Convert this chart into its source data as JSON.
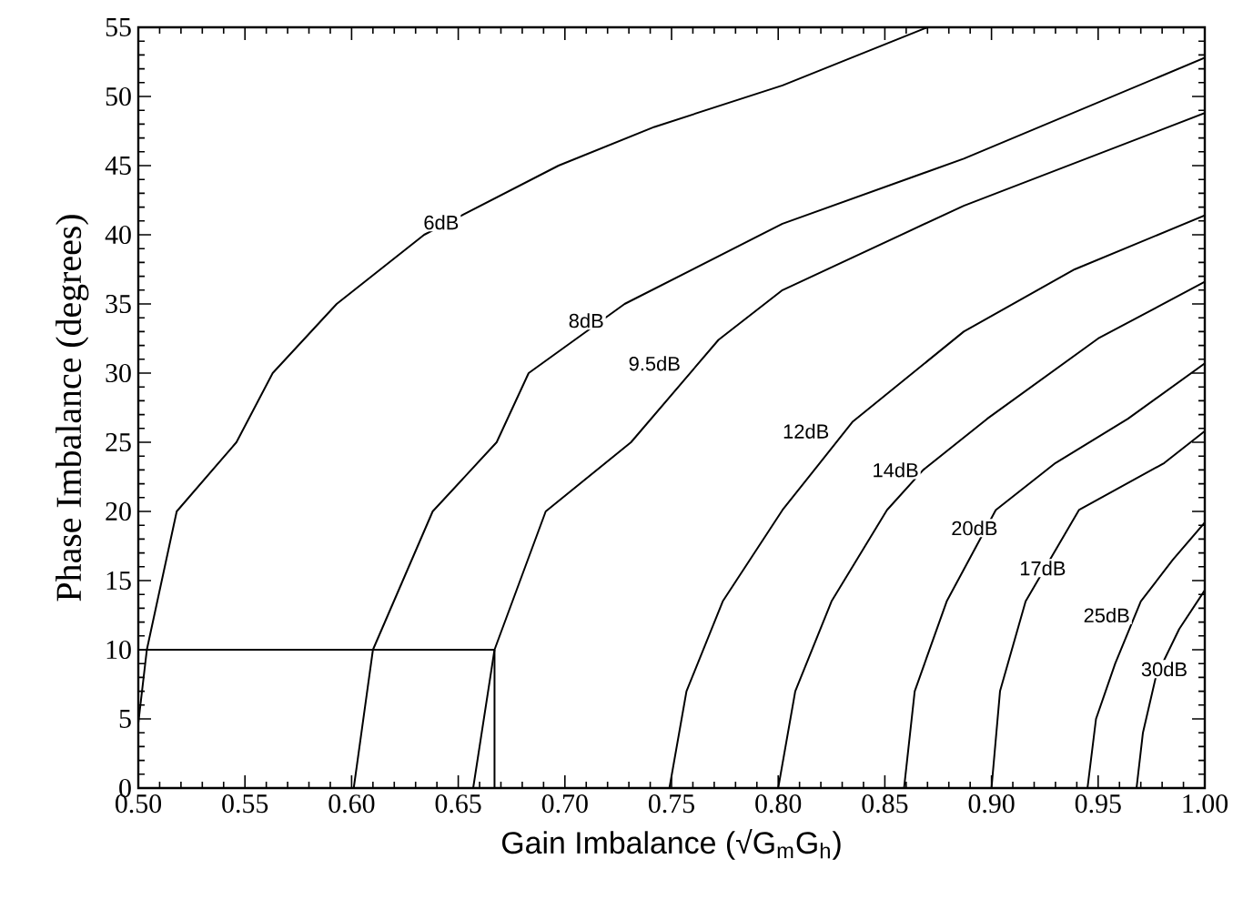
{
  "chart_data": {
    "type": "line",
    "xlabel": "Gain Imbalance (√G$_{m}$G$_{h}$)",
    "ylabel": "Phase Imbalance (degrees)",
    "xlim": [
      0.5,
      1.0
    ],
    "ylim": [
      0,
      55
    ],
    "xticks": [
      {
        "value": 0.5,
        "label": "0.50"
      },
      {
        "value": 0.55,
        "label": "0.55"
      },
      {
        "value": 0.6,
        "label": "0.60"
      },
      {
        "value": 0.65,
        "label": "0.65"
      },
      {
        "value": 0.7,
        "label": "0.70"
      },
      {
        "value": 0.75,
        "label": "0.75"
      },
      {
        "value": 0.8,
        "label": "0.80"
      },
      {
        "value": 0.85,
        "label": "0.85"
      },
      {
        "value": 0.9,
        "label": "0.90"
      },
      {
        "value": 0.95,
        "label": "0.95"
      },
      {
        "value": 1.0,
        "label": "1.00"
      }
    ],
    "yticks": [
      0,
      5,
      10,
      15,
      20,
      25,
      30,
      35,
      40,
      45,
      50,
      55
    ],
    "series": [
      {
        "color": "#000000",
        "x": [
          0.5,
          0.504,
          0.518,
          0.546,
          0.563,
          0.593,
          0.634,
          0.697,
          0.742,
          0.802,
          0.87
        ],
        "values": [
          4.7,
          10,
          20,
          25,
          30,
          35,
          40,
          45,
          47.8,
          50.8,
          55
        ]
      },
      {
        "color": "#000000",
        "x": [
          0.601,
          0.61,
          0.638,
          0.668,
          0.683,
          0.728,
          0.802,
          0.887,
          1.0
        ],
        "values": [
          0,
          10,
          20,
          25,
          30,
          35,
          40.8,
          45.5,
          52.8
        ]
      },
      {
        "color": "#000000",
        "x": [
          0.657,
          0.667,
          0.691,
          0.731,
          0.772,
          0.802,
          0.887,
          1.0
        ],
        "values": [
          0,
          10,
          20,
          25,
          32.4,
          36,
          42.1,
          48.8
        ]
      },
      {
        "color": "#000000",
        "x": [
          0.749,
          0.757,
          0.774,
          0.802,
          0.835,
          0.887,
          0.939,
          1.0
        ],
        "values": [
          0,
          7,
          13.5,
          20.1,
          26.5,
          33,
          37.5,
          41.4
        ]
      },
      {
        "color": "#000000",
        "x": [
          0.8,
          0.808,
          0.825,
          0.851,
          0.868,
          0.898,
          0.95,
          1.0
        ],
        "values": [
          0,
          7,
          13.5,
          20.1,
          23,
          26.7,
          32.5,
          36.6
        ]
      },
      {
        "color": "#000000",
        "x": [
          0.859,
          0.864,
          0.879,
          0.902,
          0.93,
          0.964,
          1.0
        ],
        "values": [
          0,
          7,
          13.5,
          20.1,
          23.5,
          26.7,
          30.7
        ]
      },
      {
        "color": "#000000",
        "x": [
          0.9,
          0.904,
          0.916,
          0.941,
          0.981,
          1.0
        ],
        "values": [
          0,
          7,
          13.5,
          20.1,
          23.5,
          25.8
        ]
      },
      {
        "color": "#000000",
        "x": [
          0.945,
          0.949,
          0.958,
          0.97,
          0.985,
          1.0
        ],
        "values": [
          0,
          5,
          9,
          13.5,
          16.5,
          19.2
        ]
      },
      {
        "color": "#000000",
        "x": [
          0.968,
          0.971,
          0.977,
          0.988,
          1.0
        ],
        "values": [
          0,
          4,
          8,
          11.5,
          14.3
        ]
      },
      {
        "color": "#000000",
        "x": [
          0.5,
          0.667
        ],
        "values": [
          10,
          10
        ]
      },
      {
        "color": "#000000",
        "x": [
          0.667,
          0.667
        ],
        "values": [
          0,
          10
        ]
      }
    ],
    "annotations": [
      {
        "text": "6dB",
        "x": 0.642,
        "y": 40.9
      },
      {
        "text": "8dB",
        "x": 0.71,
        "y": 33.8
      },
      {
        "text": "9.5dB",
        "x": 0.742,
        "y": 30.7
      },
      {
        "text": "12dB",
        "x": 0.813,
        "y": 25.8
      },
      {
        "text": "14dB",
        "x": 0.855,
        "y": 23.0
      },
      {
        "text": "20dB",
        "x": 0.892,
        "y": 18.8
      },
      {
        "text": "17dB",
        "x": 0.924,
        "y": 15.9
      },
      {
        "text": "25dB",
        "x": 0.954,
        "y": 12.5
      },
      {
        "text": "30dB",
        "x": 0.981,
        "y": 8.6
      }
    ]
  }
}
